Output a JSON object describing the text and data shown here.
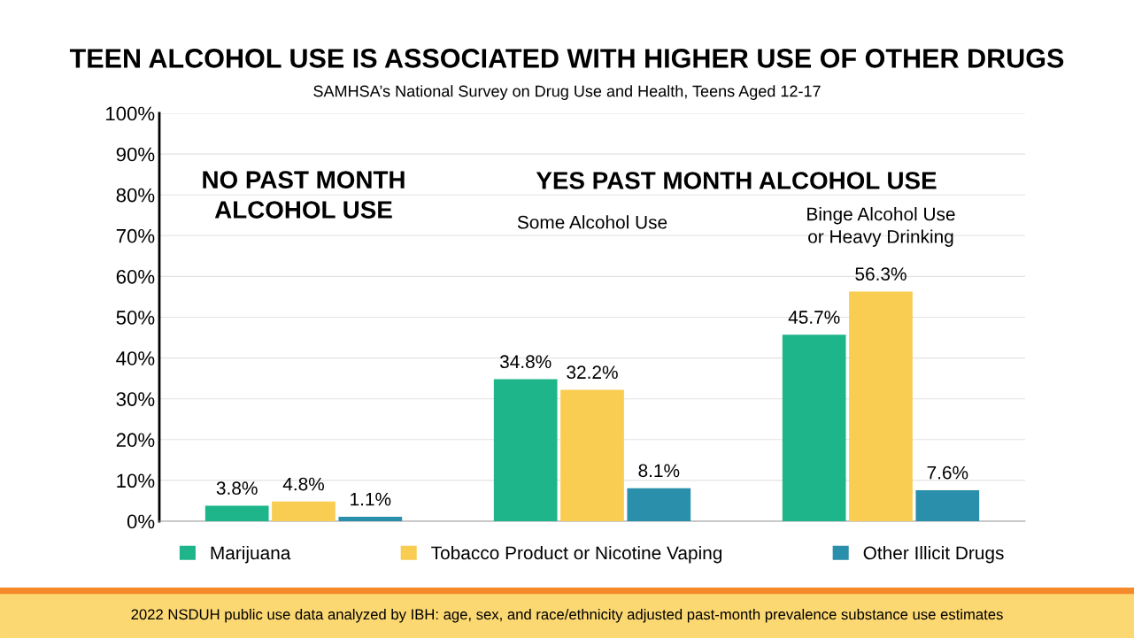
{
  "chart_data": {
    "type": "bar",
    "title": "TEEN ALCOHOL USE IS ASSOCIATED WITH HIGHER USE OF OTHER DRUGS",
    "subtitle": "SAMHSA’s National Survey on Drug Use and Health, Teens Aged 12-17",
    "categories": [
      "NO PAST MONTH ALCOHOL USE",
      "Some Alcohol Use",
      "Binge Alcohol Use or Heavy Drinking"
    ],
    "series": [
      {
        "name": "Marijuana",
        "color": "#1fb58a",
        "values": [
          3.8,
          34.8,
          45.7
        ],
        "value_labels": [
          "3.8%",
          "34.8%",
          "45.7%"
        ]
      },
      {
        "name": "Tobacco Product or Nicotine Vaping",
        "color": "#f9cc52",
        "values": [
          4.8,
          32.2,
          56.3
        ],
        "value_labels": [
          "4.8%",
          "32.2%",
          "56.3%"
        ]
      },
      {
        "name": "Other Illicit Drugs",
        "color": "#2a8fab",
        "values": [
          1.1,
          8.1,
          7.6
        ],
        "value_labels": [
          "1.1%",
          "8.1%",
          "7.6%"
        ]
      }
    ],
    "ylim": [
      0,
      100
    ],
    "yticks": [
      {
        "value": 0,
        "label": "0%"
      },
      {
        "value": 10,
        "label": "10%"
      },
      {
        "value": 20,
        "label": "20%"
      },
      {
        "value": 30,
        "label": "30%"
      },
      {
        "value": 40,
        "label": "40%"
      },
      {
        "value": 50,
        "label": "50%"
      },
      {
        "value": 60,
        "label": "60%"
      },
      {
        "value": 70,
        "label": "70%"
      },
      {
        "value": 80,
        "label": "80%"
      },
      {
        "value": 90,
        "label": "90%"
      },
      {
        "value": 100,
        "label": "100%"
      }
    ],
    "grid": "y",
    "legend": "bottom",
    "annotations": [
      "YES PAST MONTH ALCOHOL USE",
      "2022 NSDUH public use data analyzed by IBH: age, sex, and race/ethnicity adjusted past-month prevalence substance use estimates"
    ]
  }
}
